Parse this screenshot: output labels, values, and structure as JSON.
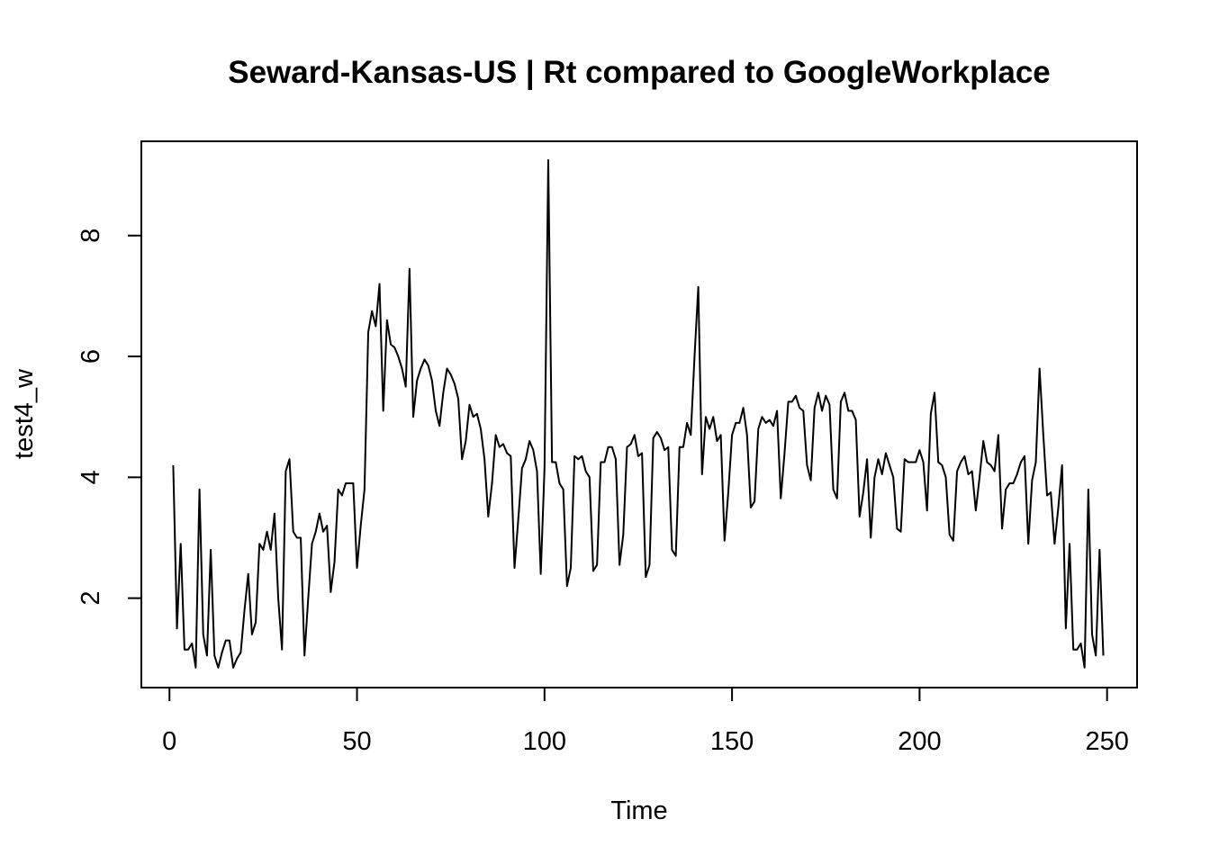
{
  "chart_data": {
    "type": "line",
    "title": "Seward-Kansas-US | Rt compared to GoogleWorkplace",
    "xlabel": "Time",
    "ylabel": "test4_w",
    "xlim": [
      -7.5,
      258
    ],
    "ylim": [
      0.52,
      9.56
    ],
    "x_ticks": [
      0,
      50,
      100,
      150,
      200,
      250
    ],
    "y_ticks": [
      2,
      4,
      6,
      8
    ],
    "x_tick_labels": [
      "0",
      "50",
      "100",
      "150",
      "200",
      "250"
    ],
    "y_tick_labels": [
      "2",
      "4",
      "6",
      "8"
    ],
    "grid": false,
    "x_start": 1,
    "series": [
      {
        "name": "test4_w",
        "values": [
          4.2,
          1.5,
          2.9,
          1.15,
          1.15,
          1.25,
          0.85,
          3.8,
          1.4,
          1.05,
          2.8,
          1.05,
          0.85,
          1.1,
          1.3,
          1.3,
          0.85,
          1.0,
          1.1,
          1.8,
          2.4,
          1.4,
          1.6,
          2.9,
          2.8,
          3.1,
          2.8,
          3.4,
          2.0,
          1.15,
          4.1,
          4.3,
          3.1,
          3.0,
          3.0,
          1.05,
          2.0,
          2.9,
          3.1,
          3.4,
          3.1,
          3.2,
          2.1,
          2.6,
          3.8,
          3.7,
          3.9,
          3.9,
          3.9,
          2.5,
          3.2,
          3.8,
          6.4,
          6.75,
          6.5,
          7.2,
          5.1,
          6.6,
          6.2,
          6.15,
          6.0,
          5.8,
          5.5,
          7.45,
          5.0,
          5.6,
          5.8,
          5.95,
          5.85,
          5.6,
          5.1,
          4.85,
          5.4,
          5.8,
          5.7,
          5.55,
          5.3,
          4.3,
          4.6,
          5.2,
          5.0,
          5.05,
          4.8,
          4.3,
          3.35,
          3.9,
          4.7,
          4.5,
          4.55,
          4.4,
          4.35,
          2.5,
          3.3,
          4.15,
          4.3,
          4.6,
          4.45,
          4.1,
          2.4,
          4.15,
          9.25,
          4.25,
          4.25,
          3.9,
          3.8,
          2.2,
          2.5,
          4.35,
          4.3,
          4.35,
          4.1,
          4.0,
          2.45,
          2.55,
          4.25,
          4.25,
          4.5,
          4.5,
          4.3,
          2.55,
          3.05,
          4.5,
          4.55,
          4.7,
          4.35,
          4.4,
          2.35,
          2.55,
          4.65,
          4.75,
          4.65,
          4.45,
          4.5,
          2.8,
          2.7,
          4.5,
          4.5,
          4.9,
          4.7,
          6.0,
          7.15,
          4.05,
          5.0,
          4.8,
          5.0,
          4.6,
          4.7,
          2.95,
          3.75,
          4.7,
          4.9,
          4.9,
          5.15,
          4.7,
          3.5,
          3.6,
          4.8,
          5.0,
          4.9,
          4.95,
          4.85,
          5.1,
          3.65,
          4.4,
          5.25,
          5.25,
          5.35,
          5.15,
          5.1,
          4.2,
          3.95,
          5.15,
          5.4,
          5.1,
          5.35,
          5.2,
          3.8,
          3.65,
          5.25,
          5.4,
          5.1,
          5.1,
          4.95,
          3.35,
          3.75,
          4.3,
          3.0,
          4.0,
          4.3,
          4.05,
          4.4,
          4.2,
          4.0,
          3.15,
          3.1,
          4.3,
          4.25,
          4.25,
          4.25,
          4.45,
          4.25,
          3.45,
          5.05,
          5.4,
          4.25,
          4.2,
          4.0,
          3.05,
          2.95,
          4.1,
          4.25,
          4.35,
          4.05,
          4.1,
          3.45,
          4.0,
          4.6,
          4.25,
          4.2,
          4.1,
          4.7,
          3.15,
          3.8,
          3.9,
          3.9,
          4.05,
          4.25,
          4.35,
          2.9,
          3.95,
          4.25,
          5.8,
          4.7,
          3.7,
          3.75,
          2.9,
          3.5,
          4.2,
          1.5,
          2.9,
          1.15,
          1.15,
          1.25,
          0.85,
          3.8,
          1.4,
          1.05,
          2.8,
          1.05
        ]
      }
    ]
  }
}
